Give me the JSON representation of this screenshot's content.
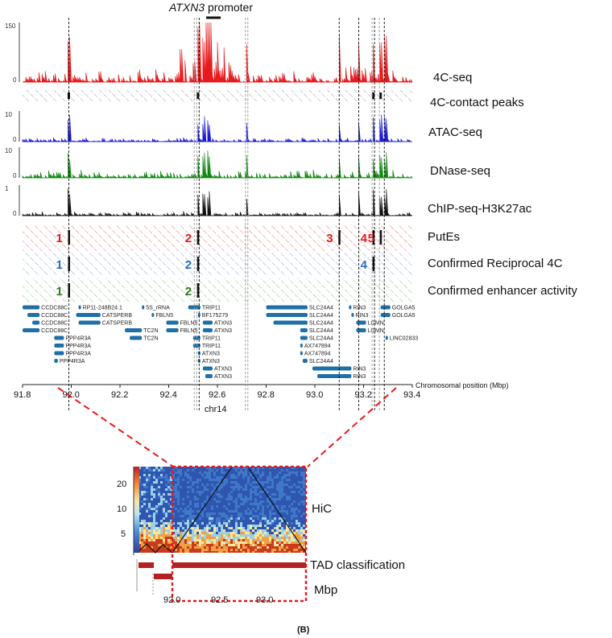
{
  "figure": {
    "promoter_gene": "ATXN3",
    "promoter_suffix": " promoter",
    "panel_label": "(B)",
    "chrom_label": "chr14",
    "position_label": "Chromosomal position (Mbp)",
    "x_ticks": [
      "91.8",
      "92.0",
      "92.2",
      "92.4",
      "92.6",
      "92.8",
      "93.0",
      "93.2",
      "93.4"
    ]
  },
  "tracks": [
    {
      "key": "4c",
      "label": "4C-seq",
      "color": "#e8191c",
      "ymax": "150",
      "ymin": "0"
    },
    {
      "key": "peaks",
      "label": "4C-contact peaks",
      "color": "#111111"
    },
    {
      "key": "atac",
      "label": "ATAC-seq",
      "color": "#1a1ad6",
      "ymax": "10",
      "ymin": "0"
    },
    {
      "key": "dnase",
      "label": "DNase-seq",
      "color": "#128a12",
      "ymax": "10",
      "ymin": "0"
    },
    {
      "key": "chip",
      "label": "ChIP-seq-H3K27ac",
      "color": "#111111",
      "ymax": "1",
      "ymin": "0"
    }
  ],
  "enhancer_rows": [
    {
      "label": "PutEs",
      "color": "#e8191c",
      "numbers": [
        "1",
        "2",
        "3",
        "4",
        "5"
      ]
    },
    {
      "label": "Confirmed Reciprocal 4C",
      "color": "#2a6fc0",
      "numbers": [
        "1",
        "2",
        "4"
      ]
    },
    {
      "label": "Confirmed enhancer activity",
      "color": "#2e7d1e",
      "numbers": [
        "1",
        "2"
      ]
    }
  ],
  "genes": [
    {
      "name": "CCDC88C",
      "start": 91.8,
      "end": 91.87
    },
    {
      "name": "CCDC88C",
      "start": 91.82,
      "end": 91.87
    },
    {
      "name": "CCDC88C",
      "start": 91.84,
      "end": 91.87
    },
    {
      "name": "CCDC88C",
      "start": 91.8,
      "end": 91.87
    },
    {
      "name": "PPP4R3A",
      "start": 91.93,
      "end": 91.97
    },
    {
      "name": "PPP4R3A",
      "start": 91.93,
      "end": 91.97
    },
    {
      "name": "PPP4R3A",
      "start": 91.93,
      "end": 91.97
    },
    {
      "name": "PPP4R3A",
      "start": 91.93,
      "end": 91.945
    },
    {
      "name": "RP11-248B24.1",
      "start": 92.03,
      "end": 92.035
    },
    {
      "name": "CATSPERB",
      "start": 92.02,
      "end": 92.12
    },
    {
      "name": "CATSPERB",
      "start": 92.03,
      "end": 92.12
    },
    {
      "name": "5S_rRNA",
      "start": 92.29,
      "end": 92.295
    },
    {
      "name": "FBLN5",
      "start": 92.33,
      "end": 92.34
    },
    {
      "name": "TC2N",
      "start": 92.22,
      "end": 92.29
    },
    {
      "name": "TC2N",
      "start": 92.24,
      "end": 92.29
    },
    {
      "name": "FBLN5",
      "start": 92.39,
      "end": 92.44
    },
    {
      "name": "FBLN5",
      "start": 92.39,
      "end": 92.44
    },
    {
      "name": "TRIP11",
      "start": 92.48,
      "end": 92.53
    },
    {
      "name": "BF175279",
      "start": 92.52,
      "end": 92.525
    },
    {
      "name": "TRIP11",
      "start": 92.5,
      "end": 92.53
    },
    {
      "name": "TRIP11",
      "start": 92.5,
      "end": 92.53
    },
    {
      "name": "ATXN3",
      "start": 92.52,
      "end": 92.53
    },
    {
      "name": "ATXN3",
      "start": 92.54,
      "end": 92.58
    },
    {
      "name": "ATXN3",
      "start": 92.54,
      "end": 92.58
    },
    {
      "name": "ATXN3",
      "start": 92.52,
      "end": 92.53
    },
    {
      "name": "ATXN3",
      "start": 92.54,
      "end": 92.58
    },
    {
      "name": "ATXN3",
      "start": 92.55,
      "end": 92.58
    },
    {
      "name": "SLC24A4",
      "start": 92.8,
      "end": 92.97
    },
    {
      "name": "SLC24A4",
      "start": 92.8,
      "end": 92.97
    },
    {
      "name": "SLC24A4",
      "start": 92.83,
      "end": 92.97
    },
    {
      "name": "SLC24A4",
      "start": 92.94,
      "end": 92.97
    },
    {
      "name": "SLC24A4",
      "start": 92.94,
      "end": 92.97
    },
    {
      "name": "AX747894",
      "start": 92.94,
      "end": 92.945
    },
    {
      "name": "AX747894",
      "start": 92.94,
      "end": 92.945
    },
    {
      "name": "SLC24A4",
      "start": 92.95,
      "end": 92.97
    },
    {
      "name": "RIN3",
      "start": 93.14,
      "end": 93.15
    },
    {
      "name": "RIN3",
      "start": 93.15,
      "end": 93.16
    },
    {
      "name": "LGMN",
      "start": 93.17,
      "end": 93.21
    },
    {
      "name": "LGMN",
      "start": 93.17,
      "end": 93.21
    },
    {
      "name": "RIN3",
      "start": 92.99,
      "end": 93.15
    },
    {
      "name": "RIN3",
      "start": 93.01,
      "end": 93.15
    },
    {
      "name": "GOLGA5",
      "start": 93.27,
      "end": 93.31
    },
    {
      "name": "GOLGA5",
      "start": 93.27,
      "end": 93.31
    },
    {
      "name": "LINC02833",
      "start": 93.29,
      "end": 93.295
    }
  ],
  "hic": {
    "label": "HiC",
    "colorbar_ticks": [
      "20",
      "10",
      "5"
    ],
    "tad_label": "TAD classification",
    "mbp_label": "Mbp",
    "x_ticks": [
      "92.0",
      "92.5",
      "93.0"
    ]
  }
}
